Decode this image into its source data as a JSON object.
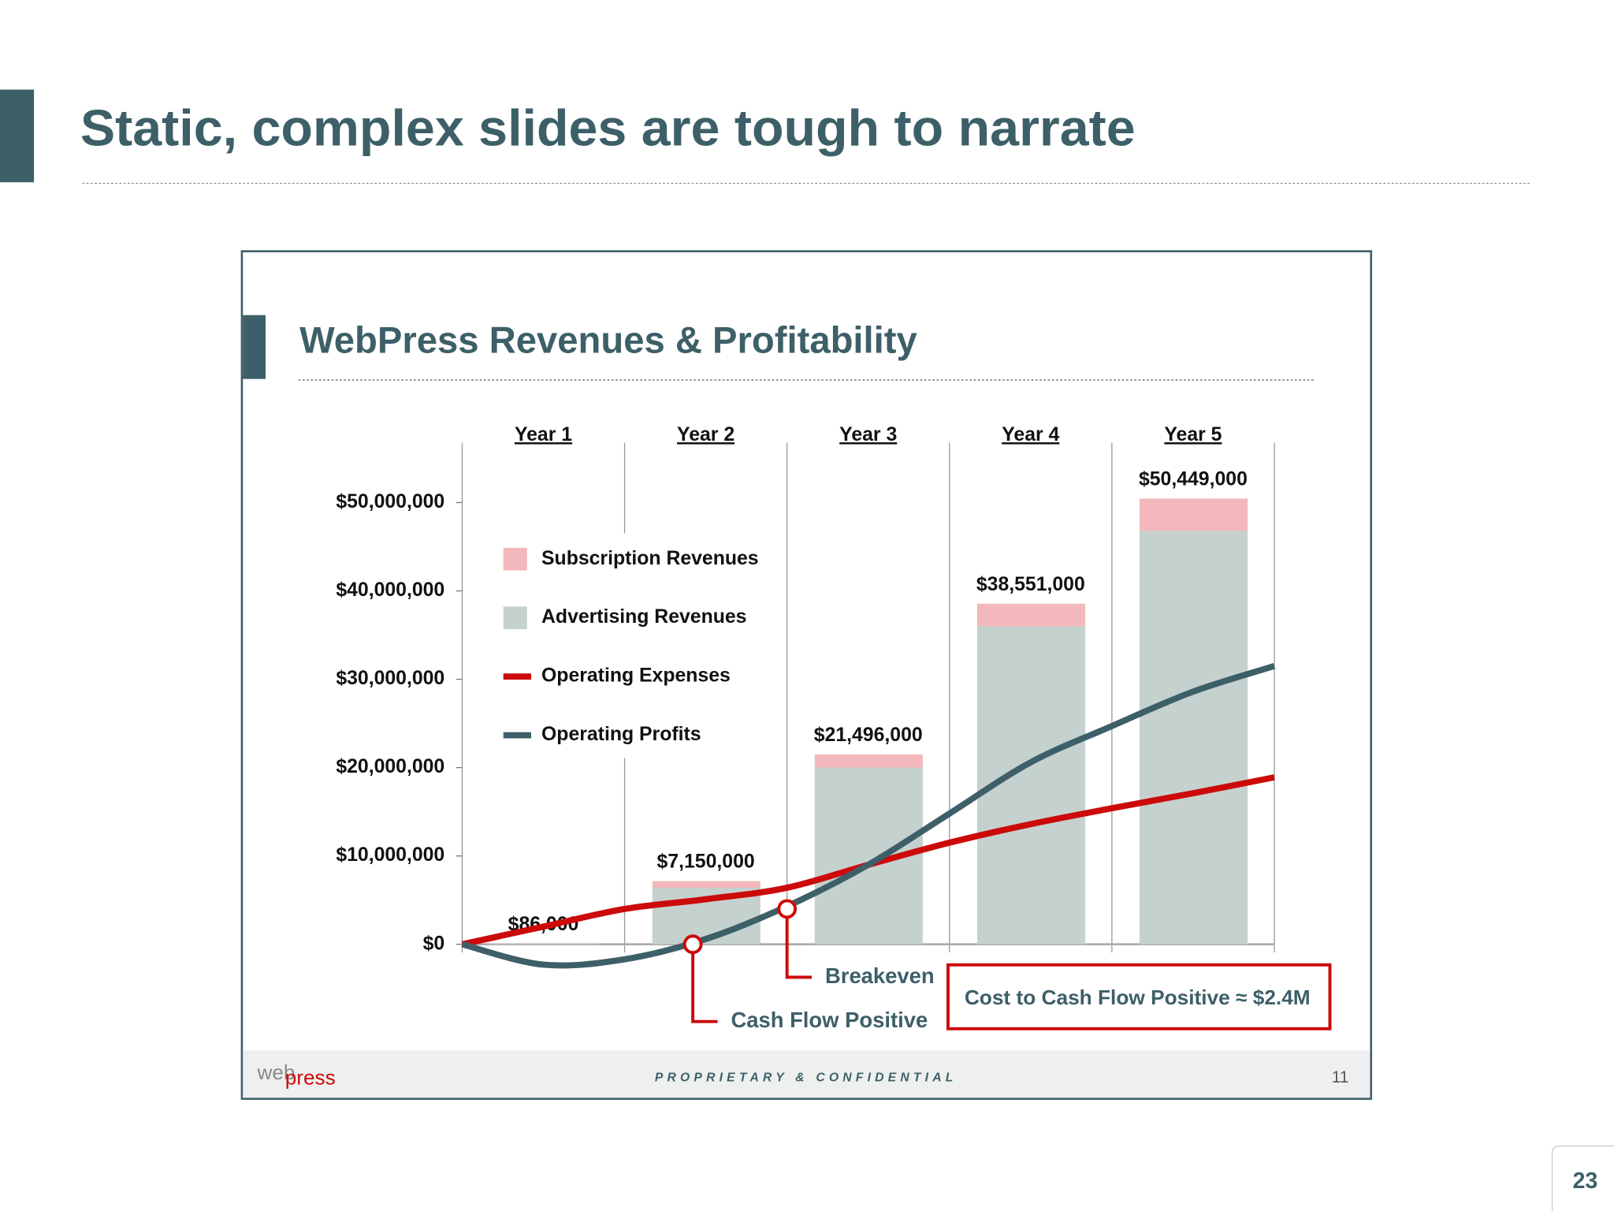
{
  "slide": {
    "title": "Static, complex slides are tough to narrate",
    "page_number": "23"
  },
  "embedded_slide": {
    "title": "WebPress Revenues & Profitability",
    "logo_web": "web",
    "logo_press": "press",
    "footer": "PROPRIETARY & CONFIDENTIAL",
    "page_number": "11"
  },
  "chart_data": {
    "type": "bar",
    "categories": [
      "Year 1",
      "Year 2",
      "Year 3",
      "Year 4",
      "Year 5"
    ],
    "series": [
      {
        "name": "Subscription Revenues",
        "color": "#f2b8bb",
        "values": [
          16000,
          750000,
          1496000,
          2551000,
          3649000
        ]
      },
      {
        "name": "Advertising Revenues",
        "color": "#c5d1cf",
        "values": [
          70000,
          6400000,
          20000000,
          36000000,
          46800000
        ]
      },
      {
        "name": "Operating Expenses",
        "color": "#cc0a0a",
        "type": "line",
        "x": [
          0,
          0.5,
          1,
          1.5,
          2,
          2.5,
          3,
          3.5,
          4,
          4.5,
          5
        ],
        "values": [
          0,
          2000000,
          4000000,
          5100000,
          6400000,
          9000000,
          11500000,
          13600000,
          15400000,
          17100000,
          18900000
        ]
      },
      {
        "name": "Operating Profits",
        "color": "#3d5f68",
        "type": "line",
        "x": [
          0,
          0.5,
          1,
          1.5,
          2,
          2.5,
          3,
          3.5,
          4,
          4.5,
          5
        ],
        "values": [
          0,
          -2300000,
          -1700000,
          600000,
          4300000,
          9000000,
          14800000,
          20600000,
          24700000,
          28600000,
          31500000
        ]
      }
    ],
    "totals": [
      86000,
      7150000,
      21496000,
      38551000,
      50449000
    ],
    "total_labels": [
      "$86,000",
      "$7,150,000",
      "$21,496,000",
      "$38,551,000",
      "$50,449,000"
    ],
    "ylim": [
      0,
      57000000
    ],
    "yticks": [
      {
        "value": 0,
        "label": "$0"
      },
      {
        "value": 10000000,
        "label": "$10,000,000"
      },
      {
        "value": 20000000,
        "label": "$20,000,000"
      },
      {
        "value": 30000000,
        "label": "$30,000,000"
      },
      {
        "value": 40000000,
        "label": "$40,000,000"
      },
      {
        "value": 50000000,
        "label": "$50,000,000"
      }
    ],
    "annotations": [
      {
        "text": "Cash Flow Positive",
        "x": 1.42,
        "y": 0
      },
      {
        "text": "Breakeven",
        "x": 2,
        "y": 4000000
      }
    ],
    "callout": "Cost to Cash Flow Positive ≈ $2.4M"
  }
}
